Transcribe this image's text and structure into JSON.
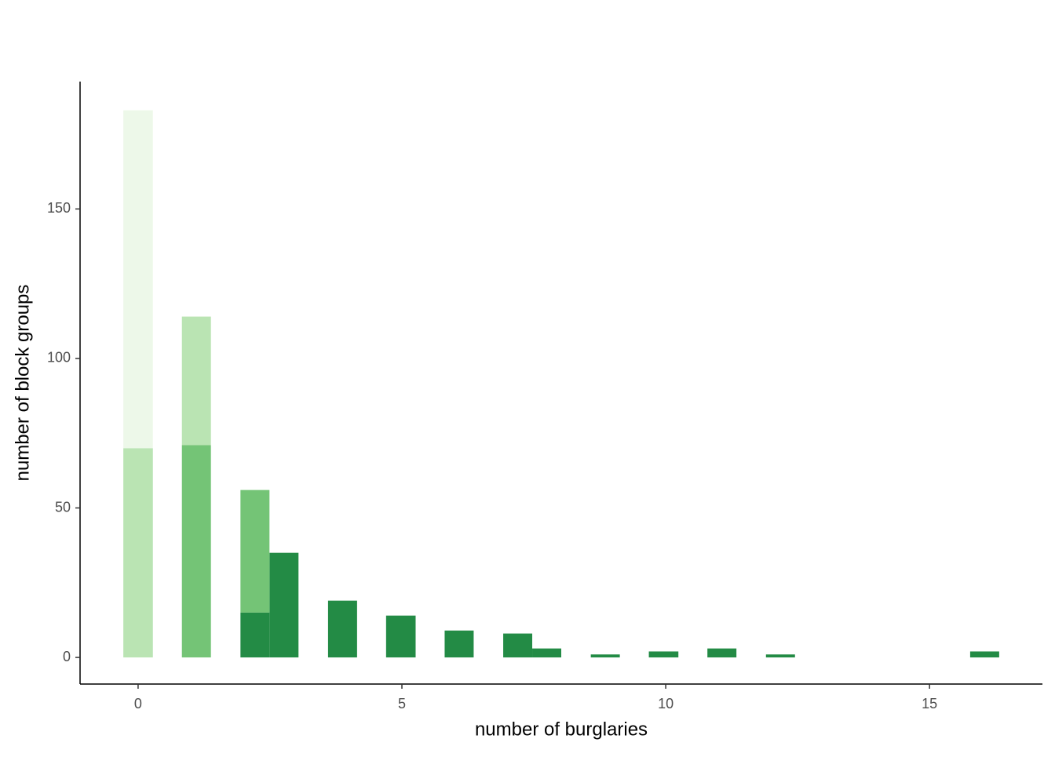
{
  "chart_data": {
    "type": "histogram",
    "stacked": true,
    "x_label": "number of burglaries",
    "y_label": "number of block groups",
    "bins": [
      -0.28,
      0.28,
      0.83,
      1.38,
      1.94,
      2.49,
      3.04,
      3.6,
      4.15,
      4.7,
      5.26,
      5.81,
      6.36,
      6.92,
      7.47,
      8.02,
      8.58,
      9.13,
      9.68,
      10.24,
      10.79,
      11.34,
      11.9,
      12.45,
      13.0,
      13.56,
      14.11,
      14.66,
      15.22,
      15.77,
      16.32
    ],
    "series": [
      {
        "color": "#238b45",
        "values": [
          0,
          0,
          0,
          0,
          15,
          35,
          0,
          19,
          0,
          14,
          0,
          9,
          0,
          8,
          3,
          0,
          1,
          0,
          2,
          0,
          3,
          0,
          1,
          0,
          0,
          0,
          0,
          0,
          0,
          2
        ]
      },
      {
        "color": "#74c476",
        "values": [
          0,
          0,
          71,
          0,
          41,
          0,
          0,
          0,
          0,
          0,
          0,
          0,
          0,
          0,
          0,
          0,
          0,
          0,
          0,
          0,
          0,
          0,
          0,
          0,
          0,
          0,
          0,
          0,
          0,
          0
        ]
      },
      {
        "color": "#bae4b3",
        "values": [
          70,
          0,
          43,
          0,
          0,
          0,
          0,
          0,
          0,
          0,
          0,
          0,
          0,
          0,
          0,
          0,
          0,
          0,
          0,
          0,
          0,
          0,
          0,
          0,
          0,
          0,
          0,
          0,
          0,
          0
        ]
      },
      {
        "color": "#edf8e9",
        "values": [
          113,
          0,
          0,
          0,
          0,
          0,
          0,
          0,
          0,
          0,
          0,
          0,
          0,
          0,
          0,
          0,
          0,
          0,
          0,
          0,
          0,
          0,
          0,
          0,
          0,
          0,
          0,
          0,
          0,
          0
        ]
      }
    ],
    "xlim": [
      -1.1,
      17.14
    ],
    "ylim": [
      -8.9,
      192.6
    ],
    "xticks": [
      0,
      5,
      10,
      15
    ],
    "yticks": [
      0,
      50,
      100,
      150
    ],
    "grid": false
  }
}
